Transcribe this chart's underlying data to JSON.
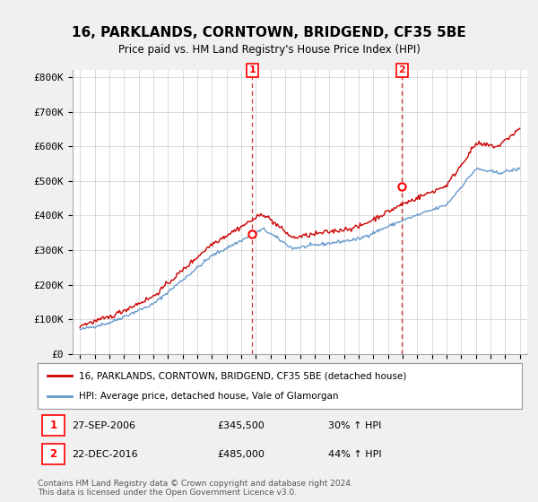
{
  "title": "16, PARKLANDS, CORNTOWN, BRIDGEND, CF35 5BE",
  "subtitle": "Price paid vs. HM Land Registry's House Price Index (HPI)",
  "ylabel_ticks": [
    "£0",
    "£100K",
    "£200K",
    "£300K",
    "£400K",
    "£500K",
    "£600K",
    "£700K",
    "£800K"
  ],
  "ytick_values": [
    0,
    100000,
    200000,
    300000,
    400000,
    500000,
    600000,
    700000,
    800000
  ],
  "ylim": [
    0,
    820000
  ],
  "sale1_year": 2006.75,
  "sale1_price": 345500,
  "sale2_year": 2016.97,
  "sale2_price": 485000,
  "hpi_line_color": "#6699cc",
  "price_line_color": "#cc0000",
  "grid_color": "#cccccc",
  "background_color": "#f0f0f0",
  "plot_bg_color": "#ffffff",
  "legend_line1": "16, PARKLANDS, CORNTOWN, BRIDGEND, CF35 5BE (detached house)",
  "legend_line2": "HPI: Average price, detached house, Vale of Glamorgan",
  "footer": "Contains HM Land Registry data © Crown copyright and database right 2024.\nThis data is licensed under the Open Government Licence v3.0.",
  "xtick_years": [
    1995,
    1996,
    1997,
    1998,
    1999,
    2000,
    2001,
    2002,
    2003,
    2004,
    2005,
    2006,
    2007,
    2008,
    2009,
    2010,
    2011,
    2012,
    2013,
    2014,
    2015,
    2016,
    2017,
    2018,
    2019,
    2020,
    2021,
    2022,
    2023,
    2024,
    2025
  ]
}
